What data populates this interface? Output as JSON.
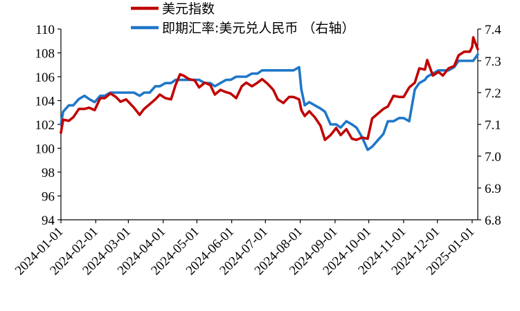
{
  "chart_data": {
    "type": "line",
    "title": "",
    "xlabel": "",
    "ylabel": "",
    "x_axis": {
      "range": [
        "2024-01-01",
        "2025-01-06"
      ],
      "tick_labels": [
        "2024-01-01",
        "2024-02-01",
        "2024-03-01",
        "2024-04-01",
        "2024-05-01",
        "2024-06-01",
        "2024-07-01",
        "2024-08-01",
        "2024-09-01",
        "2024-10-01",
        "2024-11-01",
        "2024-12-01",
        "2025-01-01"
      ]
    },
    "y_left": {
      "range": [
        94,
        110
      ],
      "tick_labels": [
        "94",
        "96",
        "98",
        "100",
        "102",
        "104",
        "106",
        "108",
        "110"
      ]
    },
    "y_right": {
      "range": [
        6.8,
        7.4
      ],
      "tick_labels": [
        "6.8",
        "6.9",
        "7.0",
        "7.1",
        "7.2",
        "7.3",
        "7.4"
      ]
    },
    "grid": false,
    "legend_position": "top-left",
    "series": [
      {
        "name": "美元指数",
        "axis": "left",
        "color": "#C00000",
        "points": [
          [
            "2024-01-01",
            101.3
          ],
          [
            "2024-01-03",
            102.4
          ],
          [
            "2024-01-08",
            102.3
          ],
          [
            "2024-01-12",
            102.6
          ],
          [
            "2024-01-17",
            103.3
          ],
          [
            "2024-01-22",
            103.3
          ],
          [
            "2024-01-26",
            103.4
          ],
          [
            "2024-01-31",
            103.2
          ],
          [
            "2024-02-05",
            104.2
          ],
          [
            "2024-02-09",
            104.2
          ],
          [
            "2024-02-14",
            104.6
          ],
          [
            "2024-02-19",
            104.3
          ],
          [
            "2024-02-23",
            103.9
          ],
          [
            "2024-02-28",
            104.1
          ],
          [
            "2024-03-01",
            103.9
          ],
          [
            "2024-03-06",
            103.4
          ],
          [
            "2024-03-11",
            102.8
          ],
          [
            "2024-03-15",
            103.3
          ],
          [
            "2024-03-20",
            103.7
          ],
          [
            "2024-03-25",
            104.1
          ],
          [
            "2024-03-29",
            104.5
          ],
          [
            "2024-04-03",
            104.2
          ],
          [
            "2024-04-08",
            104.1
          ],
          [
            "2024-04-12",
            105.3
          ],
          [
            "2024-04-16",
            106.2
          ],
          [
            "2024-04-19",
            106.1
          ],
          [
            "2024-04-24",
            105.8
          ],
          [
            "2024-04-29",
            105.7
          ],
          [
            "2024-05-03",
            105.1
          ],
          [
            "2024-05-08",
            105.5
          ],
          [
            "2024-05-13",
            105.3
          ],
          [
            "2024-05-17",
            104.5
          ],
          [
            "2024-05-22",
            104.9
          ],
          [
            "2024-05-27",
            104.7
          ],
          [
            "2024-05-31",
            104.6
          ],
          [
            "2024-06-05",
            104.2
          ],
          [
            "2024-06-10",
            105.2
          ],
          [
            "2024-06-14",
            105.5
          ],
          [
            "2024-06-19",
            105.2
          ],
          [
            "2024-06-24",
            105.5
          ],
          [
            "2024-06-28",
            105.8
          ],
          [
            "2024-07-03",
            105.4
          ],
          [
            "2024-07-08",
            104.9
          ],
          [
            "2024-07-12",
            104.1
          ],
          [
            "2024-07-17",
            103.8
          ],
          [
            "2024-07-22",
            104.3
          ],
          [
            "2024-07-26",
            104.3
          ],
          [
            "2024-07-31",
            104.1
          ],
          [
            "2024-08-02",
            103.2
          ],
          [
            "2024-08-05",
            102.7
          ],
          [
            "2024-08-09",
            103.1
          ],
          [
            "2024-08-14",
            102.6
          ],
          [
            "2024-08-19",
            101.9
          ],
          [
            "2024-08-23",
            100.7
          ],
          [
            "2024-08-28",
            101.1
          ],
          [
            "2024-09-02",
            101.7
          ],
          [
            "2024-09-06",
            101.1
          ],
          [
            "2024-09-11",
            101.6
          ],
          [
            "2024-09-16",
            100.8
          ],
          [
            "2024-09-20",
            100.7
          ],
          [
            "2024-09-25",
            100.9
          ],
          [
            "2024-09-30",
            100.8
          ],
          [
            "2024-10-04",
            102.5
          ],
          [
            "2024-10-09",
            102.9
          ],
          [
            "2024-10-14",
            103.3
          ],
          [
            "2024-10-18",
            103.5
          ],
          [
            "2024-10-23",
            104.4
          ],
          [
            "2024-10-28",
            104.3
          ],
          [
            "2024-11-01",
            104.3
          ],
          [
            "2024-11-06",
            105.1
          ],
          [
            "2024-11-11",
            105.5
          ],
          [
            "2024-11-15",
            106.7
          ],
          [
            "2024-11-20",
            106.6
          ],
          [
            "2024-11-22",
            107.4
          ],
          [
            "2024-11-27",
            106.1
          ],
          [
            "2024-12-02",
            106.4
          ],
          [
            "2024-12-06",
            106.1
          ],
          [
            "2024-12-11",
            106.7
          ],
          [
            "2024-12-16",
            106.9
          ],
          [
            "2024-12-20",
            107.8
          ],
          [
            "2024-12-25",
            108.1
          ],
          [
            "2024-12-30",
            108.1
          ],
          [
            "2025-01-01",
            108.5
          ],
          [
            "2025-01-02",
            109.3
          ],
          [
            "2025-01-06",
            108.3
          ]
        ]
      },
      {
        "name": "即期汇率:美元兑人民币 （右轴）",
        "axis": "right",
        "color": "#1F77C8",
        "points": [
          [
            "2024-01-01",
            7.1
          ],
          [
            "2024-01-03",
            7.14
          ],
          [
            "2024-01-08",
            7.16
          ],
          [
            "2024-01-12",
            7.16
          ],
          [
            "2024-01-17",
            7.18
          ],
          [
            "2024-01-22",
            7.19
          ],
          [
            "2024-01-26",
            7.18
          ],
          [
            "2024-01-31",
            7.17
          ],
          [
            "2024-02-05",
            7.19
          ],
          [
            "2024-02-09",
            7.19
          ],
          [
            "2024-02-14",
            7.2
          ],
          [
            "2024-02-19",
            7.2
          ],
          [
            "2024-02-23",
            7.2
          ],
          [
            "2024-02-28",
            7.2
          ],
          [
            "2024-03-01",
            7.2
          ],
          [
            "2024-03-06",
            7.2
          ],
          [
            "2024-03-11",
            7.19
          ],
          [
            "2024-03-15",
            7.2
          ],
          [
            "2024-03-20",
            7.2
          ],
          [
            "2024-03-25",
            7.22
          ],
          [
            "2024-03-29",
            7.22
          ],
          [
            "2024-04-03",
            7.23
          ],
          [
            "2024-04-08",
            7.23
          ],
          [
            "2024-04-12",
            7.24
          ],
          [
            "2024-04-16",
            7.24
          ],
          [
            "2024-04-19",
            7.24
          ],
          [
            "2024-04-24",
            7.24
          ],
          [
            "2024-04-29",
            7.24
          ],
          [
            "2024-05-03",
            7.24
          ],
          [
            "2024-05-08",
            7.23
          ],
          [
            "2024-05-13",
            7.23
          ],
          [
            "2024-05-17",
            7.22
          ],
          [
            "2024-05-22",
            7.23
          ],
          [
            "2024-05-27",
            7.24
          ],
          [
            "2024-05-31",
            7.24
          ],
          [
            "2024-06-05",
            7.25
          ],
          [
            "2024-06-10",
            7.25
          ],
          [
            "2024-06-14",
            7.25
          ],
          [
            "2024-06-19",
            7.26
          ],
          [
            "2024-06-24",
            7.26
          ],
          [
            "2024-06-28",
            7.27
          ],
          [
            "2024-07-03",
            7.27
          ],
          [
            "2024-07-08",
            7.27
          ],
          [
            "2024-07-12",
            7.27
          ],
          [
            "2024-07-17",
            7.27
          ],
          [
            "2024-07-22",
            7.27
          ],
          [
            "2024-07-26",
            7.27
          ],
          [
            "2024-07-31",
            7.28
          ],
          [
            "2024-08-02",
            7.21
          ],
          [
            "2024-08-05",
            7.16
          ],
          [
            "2024-08-09",
            7.17
          ],
          [
            "2024-08-14",
            7.16
          ],
          [
            "2024-08-19",
            7.15
          ],
          [
            "2024-08-23",
            7.14
          ],
          [
            "2024-08-28",
            7.1
          ],
          [
            "2024-09-02",
            7.1
          ],
          [
            "2024-09-06",
            7.09
          ],
          [
            "2024-09-11",
            7.11
          ],
          [
            "2024-09-16",
            7.1
          ],
          [
            "2024-09-20",
            7.09
          ],
          [
            "2024-09-25",
            7.06
          ],
          [
            "2024-09-30",
            7.02
          ],
          [
            "2024-10-04",
            7.03
          ],
          [
            "2024-10-09",
            7.05
          ],
          [
            "2024-10-14",
            7.07
          ],
          [
            "2024-10-18",
            7.11
          ],
          [
            "2024-10-23",
            7.11
          ],
          [
            "2024-10-28",
            7.12
          ],
          [
            "2024-11-01",
            7.12
          ],
          [
            "2024-11-06",
            7.11
          ],
          [
            "2024-11-11",
            7.21
          ],
          [
            "2024-11-15",
            7.23
          ],
          [
            "2024-11-20",
            7.24
          ],
          [
            "2024-11-22",
            7.25
          ],
          [
            "2024-11-27",
            7.26
          ],
          [
            "2024-12-02",
            7.27
          ],
          [
            "2024-12-06",
            7.27
          ],
          [
            "2024-12-11",
            7.27
          ],
          [
            "2024-12-16",
            7.28
          ],
          [
            "2024-12-20",
            7.3
          ],
          [
            "2024-12-25",
            7.3
          ],
          [
            "2024-12-30",
            7.3
          ],
          [
            "2025-01-01",
            7.3
          ],
          [
            "2025-01-02",
            7.3
          ],
          [
            "2025-01-06",
            7.32
          ]
        ]
      }
    ]
  }
}
